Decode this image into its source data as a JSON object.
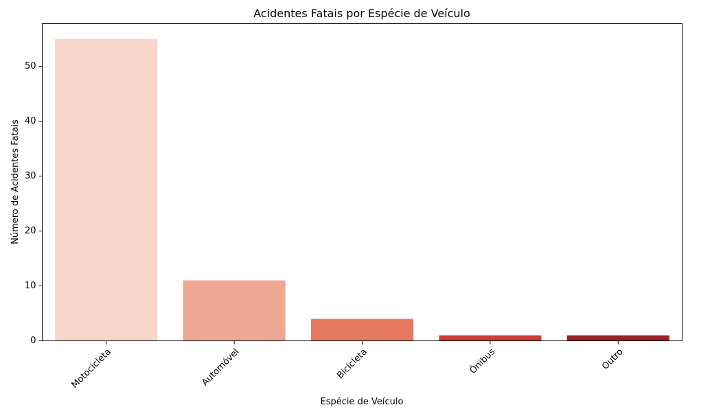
{
  "chart_data": {
    "type": "bar",
    "title": "Acidentes Fatais por Espécie de Veículo",
    "xlabel": "Espécie de Veículo",
    "ylabel": "Número de Acidentes Fatais",
    "categories": [
      "Motocicleta",
      "Automóvel",
      "Bicicleta",
      "Ônibus",
      "Outro"
    ],
    "values": [
      55,
      11,
      4,
      1,
      1
    ],
    "colors": [
      "#f8d6ca",
      "#eea790",
      "#e77860",
      "#cb3e35",
      "#9b2328"
    ],
    "ylim": [
      0,
      57.75
    ],
    "yticks": [
      0,
      10,
      20,
      30,
      40,
      50
    ],
    "grid": false,
    "legend": false
  }
}
